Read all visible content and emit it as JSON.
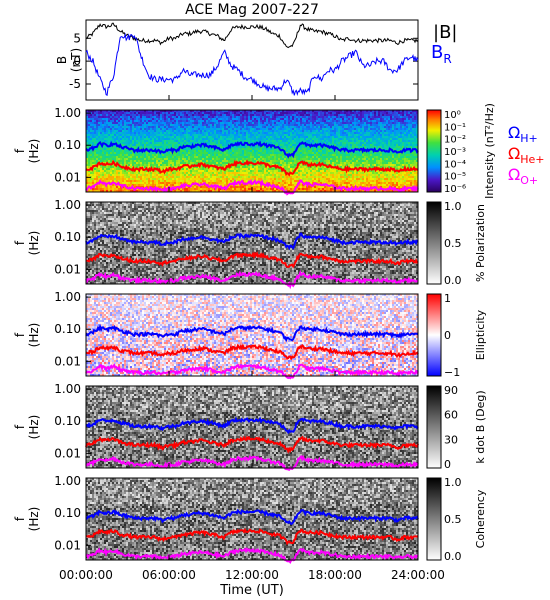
{
  "title": "ACE Mag 2007-227",
  "xaxis": {
    "label": "Time (UT)",
    "ticks": [
      "00:00:00",
      "06:00:00",
      "12:00:00",
      "18:00:00",
      "24:00:00"
    ],
    "range_hours": [
      0,
      24
    ]
  },
  "freq_labels": {
    "ylabel_top": "f",
    "ylabel_bottom": "(Hz)",
    "ticks": [
      "1.00",
      "0.10",
      "0.01"
    ]
  },
  "colors": {
    "total": "#000000",
    "radial": "#0000ff",
    "h_plus": "#0000ff",
    "he_plus": "#ff0000",
    "o_plus": "#ff00ff"
  },
  "gyro_legend": {
    "h_plus": {
      "symbol": "Ω",
      "sub": "H+"
    },
    "he_plus": {
      "symbol": "Ω",
      "sub": "He+"
    },
    "o_plus": {
      "symbol": "Ω",
      "sub": "O+"
    }
  },
  "chart_data": [
    {
      "type": "line",
      "panel": "B-field",
      "ylabel": "B",
      "yunit": "(nT)",
      "yticks": [
        "5",
        "0",
        "-5"
      ],
      "ylim": [
        -8.5,
        9
      ],
      "legend": [
        "|B|",
        "B",
        "R"
      ],
      "series": [
        {
          "name": "|B|",
          "x": [
            0,
            0.5,
            1,
            1.5,
            2,
            2.5,
            3,
            3.5,
            4,
            4.5,
            5,
            5.5,
            6,
            6.5,
            7,
            7.5,
            8,
            8.5,
            9,
            9.5,
            10,
            10.5,
            11,
            11.5,
            12,
            12.5,
            13,
            13.5,
            14,
            14.5,
            15,
            15.5,
            16,
            16.5,
            17,
            17.5,
            18,
            18.5,
            19,
            19.5,
            20,
            20.5,
            21,
            21.5,
            22,
            22.5,
            23,
            23.5,
            24
          ],
          "values": [
            5,
            6,
            8,
            7.5,
            8,
            6.5,
            5.5,
            5,
            4.5,
            4.5,
            4.5,
            4,
            5,
            5,
            6,
            6,
            6.5,
            6.5,
            6,
            5.5,
            4.5,
            7,
            7.5,
            7.5,
            7.5,
            7.5,
            7,
            6,
            5.5,
            3,
            3.5,
            8,
            7,
            6.5,
            6.5,
            6,
            5.5,
            4.5,
            5,
            4.5,
            4.5,
            4.5,
            4.5,
            4.5,
            4.5,
            4,
            4.5,
            4.5,
            4.5
          ]
        },
        {
          "name": "B_R",
          "x": [
            0,
            0.5,
            1,
            1.5,
            2,
            2.5,
            3,
            3.5,
            4,
            4.5,
            5,
            5.5,
            6,
            6.5,
            7,
            7.5,
            8,
            8.5,
            9,
            9.5,
            10,
            10.5,
            11,
            11.5,
            12,
            12.5,
            13,
            13.5,
            14,
            14.5,
            15,
            15.5,
            16,
            16.5,
            17,
            17.5,
            18,
            18.5,
            19,
            19.5,
            20,
            20.5,
            21,
            21.5,
            22,
            22.5,
            23,
            23.5,
            24
          ],
          "values": [
            2,
            0,
            -4,
            -7,
            -3,
            6,
            5,
            6,
            1,
            -3,
            -4,
            -4,
            -4,
            -4,
            -2,
            -3,
            -3,
            -3,
            -3,
            -1,
            2,
            -1,
            -2,
            -3.5,
            -4,
            -5,
            -6,
            -6,
            -6,
            -4,
            -7,
            -6.5,
            -7,
            -3,
            -4,
            -2,
            -2,
            0,
            1,
            2,
            -1,
            -1,
            0,
            0,
            -2,
            -2,
            0,
            1,
            0
          ]
        }
      ]
    },
    {
      "type": "heatmap",
      "panel": "Intensity",
      "cbar_label": "Intensity (nT²/Hz)",
      "cbar_ticks": [
        "10⁰",
        "10⁻¹",
        "10⁻²",
        "10⁻³",
        "10⁻⁴",
        "10⁻⁵",
        "10⁻⁶"
      ]
    },
    {
      "type": "heatmap",
      "panel": "% Polarization",
      "cbar_label": "% Polarization",
      "cbar_ticks": [
        "1.0",
        "0.5",
        "0.0"
      ]
    },
    {
      "type": "heatmap",
      "panel": "Ellipticity",
      "cbar_label": "Ellipticity",
      "cbar_ticks": [
        "1",
        "0",
        "−1"
      ]
    },
    {
      "type": "heatmap",
      "panel": "k dot B",
      "cbar_label": "k dot B (Deg)",
      "cbar_ticks": [
        "90",
        "60",
        "30",
        "0"
      ]
    },
    {
      "type": "heatmap",
      "panel": "Coherency",
      "cbar_label": "Coherency",
      "cbar_ticks": [
        "1.0",
        "0.5",
        "0.0"
      ]
    }
  ],
  "gyrofrequency_lines": {
    "x": [
      0,
      0.5,
      1,
      1.5,
      2,
      2.5,
      3,
      3.5,
      4,
      4.5,
      5,
      5.5,
      6,
      6.5,
      7,
      7.5,
      8,
      8.5,
      9,
      9.5,
      10,
      10.5,
      11,
      11.5,
      12,
      12.5,
      13,
      13.5,
      14,
      14.5,
      15,
      15.5,
      16,
      16.5,
      17,
      17.5,
      18,
      18.5,
      19,
      19.5,
      20,
      20.5,
      21,
      21.5,
      22,
      22.5,
      23,
      23.5,
      24
    ],
    "h_plus_hz": [
      0.07,
      0.08,
      0.11,
      0.1,
      0.11,
      0.09,
      0.08,
      0.07,
      0.07,
      0.07,
      0.07,
      0.06,
      0.07,
      0.07,
      0.09,
      0.09,
      0.1,
      0.1,
      0.09,
      0.08,
      0.07,
      0.1,
      0.11,
      0.11,
      0.11,
      0.11,
      0.1,
      0.09,
      0.08,
      0.05,
      0.05,
      0.12,
      0.1,
      0.1,
      0.1,
      0.09,
      0.08,
      0.07,
      0.07,
      0.07,
      0.07,
      0.07,
      0.07,
      0.07,
      0.07,
      0.06,
      0.07,
      0.07,
      0.07
    ],
    "he_plus_hz": [
      0.018,
      0.02,
      0.028,
      0.025,
      0.028,
      0.022,
      0.02,
      0.018,
      0.018,
      0.018,
      0.018,
      0.015,
      0.018,
      0.018,
      0.022,
      0.022,
      0.025,
      0.025,
      0.022,
      0.02,
      0.018,
      0.025,
      0.028,
      0.028,
      0.028,
      0.028,
      0.025,
      0.022,
      0.02,
      0.013,
      0.013,
      0.03,
      0.025,
      0.025,
      0.025,
      0.022,
      0.02,
      0.018,
      0.018,
      0.018,
      0.018,
      0.018,
      0.018,
      0.018,
      0.018,
      0.015,
      0.018,
      0.018,
      0.018
    ],
    "o_plus_hz": [
      0.0045,
      0.005,
      0.007,
      0.006,
      0.007,
      0.0055,
      0.005,
      0.0045,
      0.0045,
      0.0045,
      0.0045,
      0.004,
      0.0045,
      0.0045,
      0.0055,
      0.0055,
      0.006,
      0.006,
      0.0055,
      0.005,
      0.0045,
      0.006,
      0.007,
      0.007,
      0.007,
      0.007,
      0.006,
      0.0055,
      0.005,
      0.0033,
      0.0033,
      0.0075,
      0.006,
      0.006,
      0.006,
      0.0055,
      0.005,
      0.0045,
      0.0045,
      0.0045,
      0.0045,
      0.0045,
      0.0045,
      0.0045,
      0.0045,
      0.004,
      0.0045,
      0.0045,
      0.0045
    ]
  }
}
